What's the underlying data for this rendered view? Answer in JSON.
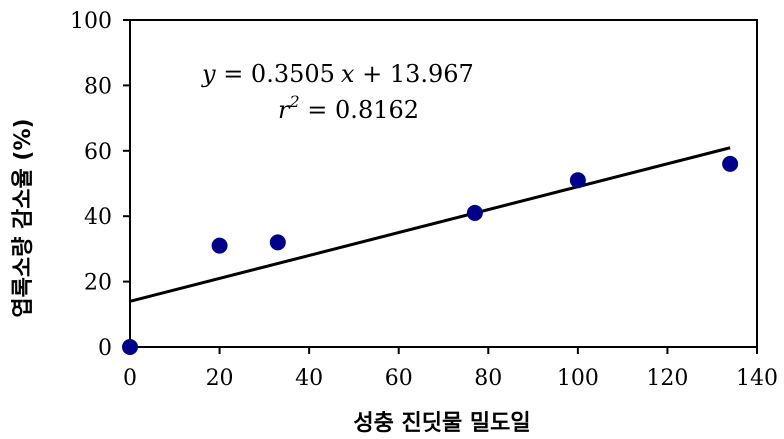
{
  "chart_data": {
    "type": "scatter",
    "title": "",
    "xlabel": "성충 진딧물 밀도일",
    "ylabel": "엽록소량 감소율 (%)",
    "xlim": [
      0,
      140
    ],
    "ylim": [
      0,
      100
    ],
    "x_ticks": [
      0,
      20,
      40,
      60,
      80,
      100,
      120,
      140
    ],
    "y_ticks": [
      0,
      20,
      40,
      60,
      80,
      100
    ],
    "x_tick_labels": [
      "0",
      "20",
      "40",
      "60",
      "80",
      "100",
      "120",
      "140"
    ],
    "y_tick_labels": [
      "0",
      "20",
      "40",
      "60",
      "80",
      "100"
    ],
    "grid": false,
    "legend": "none",
    "series": [
      {
        "x": [
          0,
          20,
          33,
          77,
          100,
          134
        ],
        "y": [
          0,
          31,
          32,
          41,
          51,
          56
        ],
        "color": "#00008B"
      }
    ],
    "trendline": {
      "slope": 0.3505,
      "intercept": 13.967,
      "x_range": [
        0,
        134
      ],
      "color": "#000000"
    },
    "annotations": {
      "eq_y": "y",
      "eq_rhs_a": " = 0.3505",
      "eq_x": "x",
      "eq_rhs_b": " + 13.967",
      "r_letter": "r",
      "r_exp": "2",
      "r_rhs": " = 0.8162"
    }
  }
}
